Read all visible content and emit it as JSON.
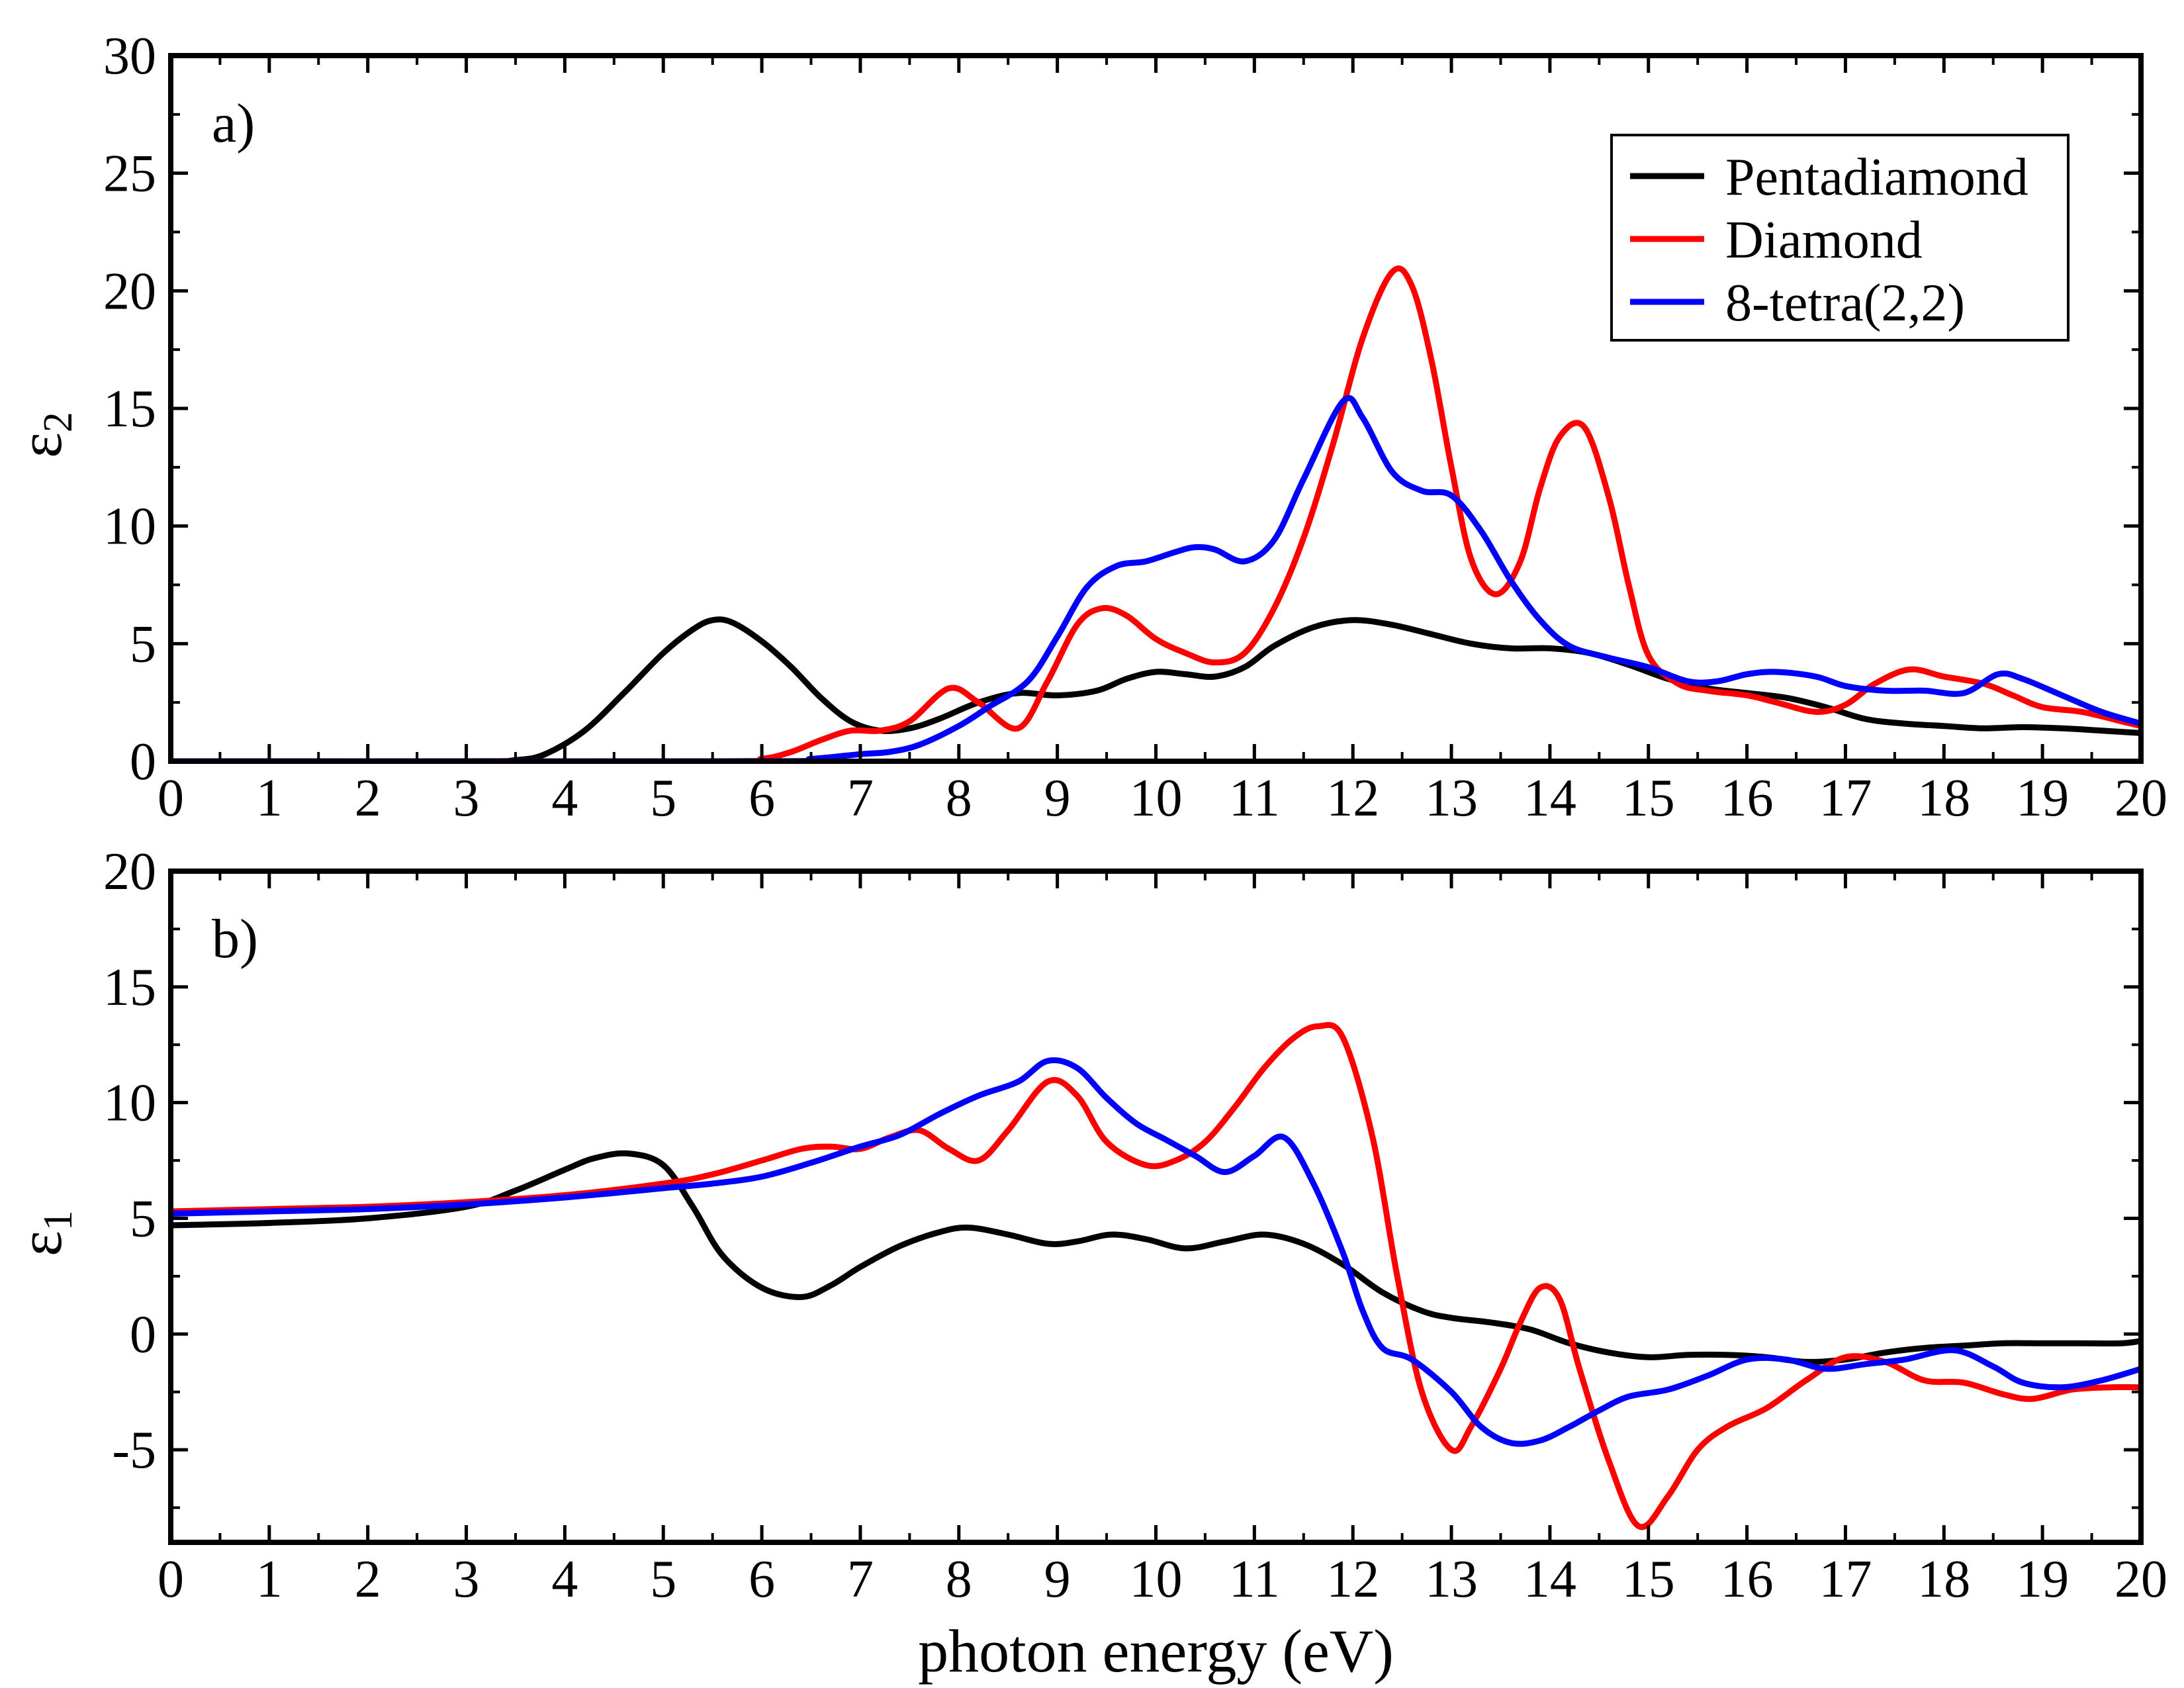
{
  "x_axis_label": "photon energy (eV)",
  "legend": {
    "placement": "top-right of panel a",
    "entries": [
      {
        "name": "Pentadiamond",
        "color": "#000000"
      },
      {
        "name": "Diamond",
        "color": "#ff0000"
      },
      {
        "name": "8-tetra(2,2)",
        "color": "#0000ff"
      }
    ]
  },
  "chart_data": [
    {
      "type": "line",
      "panel_label": "a)",
      "ylabel_symbol": "ε",
      "ylabel_subscript": "2",
      "xlim": [
        0,
        20
      ],
      "ylim": [
        0,
        30
      ],
      "x_ticks": [
        0,
        1,
        2,
        3,
        4,
        5,
        6,
        7,
        8,
        9,
        10,
        11,
        12,
        13,
        14,
        15,
        16,
        17,
        18,
        19,
        20
      ],
      "y_ticks": [
        0,
        5,
        10,
        15,
        20,
        25,
        30
      ],
      "grid": false,
      "series": [
        {
          "name": "Pentadiamond",
          "color": "#000000",
          "x": [
            0,
            3,
            3.5,
            3.8,
            4.2,
            4.6,
            5.0,
            5.3,
            5.5,
            5.7,
            6.0,
            6.3,
            6.6,
            6.9,
            7.2,
            7.5,
            7.8,
            8.2,
            8.6,
            9.0,
            9.4,
            9.7,
            10.0,
            10.3,
            10.6,
            10.9,
            11.2,
            11.6,
            12.0,
            12.4,
            12.8,
            13.2,
            13.6,
            14.0,
            14.4,
            14.8,
            15.2,
            15.6,
            16.0,
            16.4,
            16.8,
            17.2,
            17.6,
            18.0,
            18.4,
            18.8,
            19.2,
            19.6,
            20.0
          ],
          "y": [
            0,
            0,
            0.05,
            0.3,
            1.3,
            2.9,
            4.6,
            5.6,
            6.0,
            5.9,
            5.1,
            4.0,
            2.7,
            1.7,
            1.3,
            1.4,
            1.8,
            2.5,
            2.9,
            2.8,
            3.0,
            3.5,
            3.8,
            3.7,
            3.6,
            4.0,
            4.9,
            5.7,
            6.0,
            5.8,
            5.4,
            5.0,
            4.8,
            4.8,
            4.6,
            4.1,
            3.5,
            3.1,
            2.9,
            2.7,
            2.3,
            1.8,
            1.6,
            1.5,
            1.4,
            1.45,
            1.4,
            1.3,
            1.2
          ]
        },
        {
          "name": "Diamond",
          "color": "#ff0000",
          "x": [
            0,
            5.5,
            6.0,
            6.3,
            6.6,
            6.9,
            7.2,
            7.5,
            7.9,
            8.2,
            8.6,
            8.9,
            9.2,
            9.45,
            9.7,
            10.0,
            10.3,
            10.6,
            10.9,
            11.2,
            11.5,
            11.8,
            12.1,
            12.4,
            12.6,
            12.8,
            13.0,
            13.2,
            13.45,
            13.7,
            13.9,
            14.1,
            14.35,
            14.6,
            14.8,
            15.0,
            15.3,
            15.6,
            16.0,
            16.3,
            16.7,
            17.0,
            17.3,
            17.65,
            18.0,
            18.4,
            18.7,
            19.0,
            19.4,
            19.8,
            20.0
          ],
          "y": [
            0,
            0,
            0.1,
            0.4,
            0.9,
            1.3,
            1.3,
            1.7,
            3.1,
            2.5,
            1.4,
            3.4,
            5.8,
            6.5,
            6.2,
            5.2,
            4.6,
            4.2,
            4.6,
            6.5,
            9.5,
            13.5,
            18.0,
            20.8,
            20.2,
            17.0,
            12.5,
            8.6,
            7.1,
            8.5,
            11.6,
            13.8,
            14.2,
            11.2,
            7.5,
            4.5,
            3.3,
            3.0,
            2.8,
            2.5,
            2.1,
            2.4,
            3.3,
            3.9,
            3.6,
            3.3,
            2.8,
            2.3,
            2.1,
            1.7,
            1.5
          ]
        },
        {
          "name": "8-tetra(2,2)",
          "color": "#0000ff",
          "x": [
            0,
            6.0,
            6.5,
            7.0,
            7.3,
            7.6,
            8.0,
            8.3,
            8.7,
            9.0,
            9.3,
            9.6,
            9.9,
            10.2,
            10.4,
            10.6,
            10.9,
            11.2,
            11.5,
            11.9,
            12.1,
            12.4,
            12.7,
            13.0,
            13.3,
            13.6,
            13.9,
            14.2,
            14.6,
            15.0,
            15.4,
            15.7,
            16.0,
            16.3,
            16.7,
            17.0,
            17.4,
            17.8,
            18.2,
            18.55,
            18.8,
            19.2,
            19.6,
            20.0
          ],
          "y": [
            0,
            0,
            0.1,
            0.3,
            0.4,
            0.7,
            1.5,
            2.3,
            3.4,
            5.3,
            7.4,
            8.3,
            8.5,
            8.9,
            9.1,
            9.0,
            8.5,
            9.4,
            12.0,
            15.3,
            14.6,
            12.3,
            11.5,
            11.3,
            9.8,
            7.7,
            6.0,
            4.9,
            4.4,
            4.0,
            3.4,
            3.4,
            3.7,
            3.8,
            3.6,
            3.2,
            3.0,
            3.0,
            2.9,
            3.7,
            3.5,
            2.8,
            2.1,
            1.6
          ]
        }
      ]
    },
    {
      "type": "line",
      "panel_label": "b)",
      "ylabel_symbol": "ε",
      "ylabel_subscript": "1",
      "xlim": [
        0,
        20
      ],
      "ylim": [
        -9,
        20
      ],
      "x_ticks": [
        0,
        1,
        2,
        3,
        4,
        5,
        6,
        7,
        8,
        9,
        10,
        11,
        12,
        13,
        14,
        15,
        16,
        17,
        18,
        19,
        20
      ],
      "y_ticks": [
        -5,
        0,
        5,
        10,
        15,
        20
      ],
      "grid": false,
      "series": [
        {
          "name": "Pentadiamond",
          "color": "#000000",
          "x": [
            0,
            1,
            2,
            3,
            3.5,
            4.0,
            4.3,
            4.65,
            5.0,
            5.3,
            5.6,
            6.0,
            6.4,
            6.7,
            7.0,
            7.4,
            7.8,
            8.1,
            8.5,
            8.9,
            9.2,
            9.55,
            9.9,
            10.3,
            10.7,
            11.1,
            11.5,
            11.9,
            12.3,
            12.7,
            13.0,
            13.4,
            13.8,
            14.2,
            14.6,
            15.0,
            15.4,
            15.8,
            16.2,
            16.6,
            17.0,
            17.4,
            17.8,
            18.2,
            18.6,
            19.0,
            19.4,
            19.8,
            20.0
          ],
          "y": [
            4.7,
            4.8,
            5.0,
            5.5,
            6.2,
            7.1,
            7.6,
            7.8,
            7.3,
            5.5,
            3.4,
            2.0,
            1.6,
            2.1,
            2.9,
            3.8,
            4.4,
            4.6,
            4.3,
            3.9,
            4.0,
            4.3,
            4.1,
            3.7,
            4.0,
            4.3,
            3.9,
            3.0,
            1.8,
            1.0,
            0.7,
            0.5,
            0.2,
            -0.4,
            -0.8,
            -1.0,
            -0.9,
            -0.9,
            -1.0,
            -1.2,
            -1.1,
            -0.8,
            -0.6,
            -0.5,
            -0.4,
            -0.4,
            -0.4,
            -0.4,
            -0.3
          ]
        },
        {
          "name": "Diamond",
          "color": "#ff0000",
          "x": [
            0,
            1,
            2,
            3,
            4,
            5,
            5.5,
            6.0,
            6.4,
            6.7,
            7.0,
            7.3,
            7.6,
            7.9,
            8.2,
            8.5,
            8.9,
            9.2,
            9.5,
            9.9,
            10.2,
            10.5,
            10.8,
            11.1,
            11.4,
            11.65,
            11.9,
            12.2,
            12.45,
            12.7,
            13.0,
            13.2,
            13.5,
            13.7,
            13.9,
            14.1,
            14.3,
            14.6,
            14.9,
            15.2,
            15.5,
            15.8,
            16.2,
            16.6,
            17.0,
            17.4,
            17.8,
            18.2,
            18.6,
            18.9,
            19.3,
            19.7,
            20.0
          ],
          "y": [
            5.3,
            5.4,
            5.5,
            5.7,
            6.0,
            6.5,
            6.9,
            7.5,
            8.0,
            8.1,
            8.0,
            8.5,
            8.8,
            8.0,
            7.5,
            8.8,
            10.9,
            10.3,
            8.3,
            7.3,
            7.5,
            8.3,
            9.8,
            11.5,
            12.8,
            13.3,
            12.8,
            8.5,
            2.5,
            -2.5,
            -5.0,
            -4.0,
            -1.5,
            0.5,
            2.0,
            1.5,
            -1.5,
            -5.5,
            -8.3,
            -7.0,
            -5.0,
            -4.0,
            -3.2,
            -2.0,
            -1.0,
            -1.2,
            -2.0,
            -2.1,
            -2.6,
            -2.8,
            -2.4,
            -2.3,
            -2.3
          ]
        },
        {
          "name": "8-tetra(2,2)",
          "color": "#0000ff",
          "x": [
            0,
            1,
            2,
            3,
            4,
            5,
            5.5,
            6.0,
            6.5,
            7.0,
            7.4,
            7.8,
            8.2,
            8.6,
            8.9,
            9.2,
            9.5,
            9.8,
            10.1,
            10.4,
            10.7,
            11.0,
            11.3,
            11.6,
            11.9,
            12.1,
            12.3,
            12.6,
            13.0,
            13.3,
            13.6,
            13.9,
            14.2,
            14.5,
            14.8,
            15.2,
            15.6,
            16.0,
            16.4,
            16.8,
            17.2,
            17.6,
            18.1,
            18.5,
            18.8,
            19.2,
            19.6,
            20.0
          ],
          "y": [
            5.2,
            5.3,
            5.4,
            5.6,
            5.9,
            6.3,
            6.5,
            6.8,
            7.4,
            8.1,
            8.6,
            9.5,
            10.3,
            10.9,
            11.8,
            11.5,
            10.2,
            9.1,
            8.4,
            7.7,
            7.0,
            7.7,
            8.5,
            6.5,
            3.5,
            1.0,
            -0.6,
            -1.1,
            -2.5,
            -4.0,
            -4.7,
            -4.6,
            -4.0,
            -3.3,
            -2.7,
            -2.4,
            -1.8,
            -1.1,
            -1.1,
            -1.5,
            -1.3,
            -1.1,
            -0.7,
            -1.4,
            -2.1,
            -2.3,
            -2.0,
            -1.5
          ]
        }
      ]
    }
  ]
}
